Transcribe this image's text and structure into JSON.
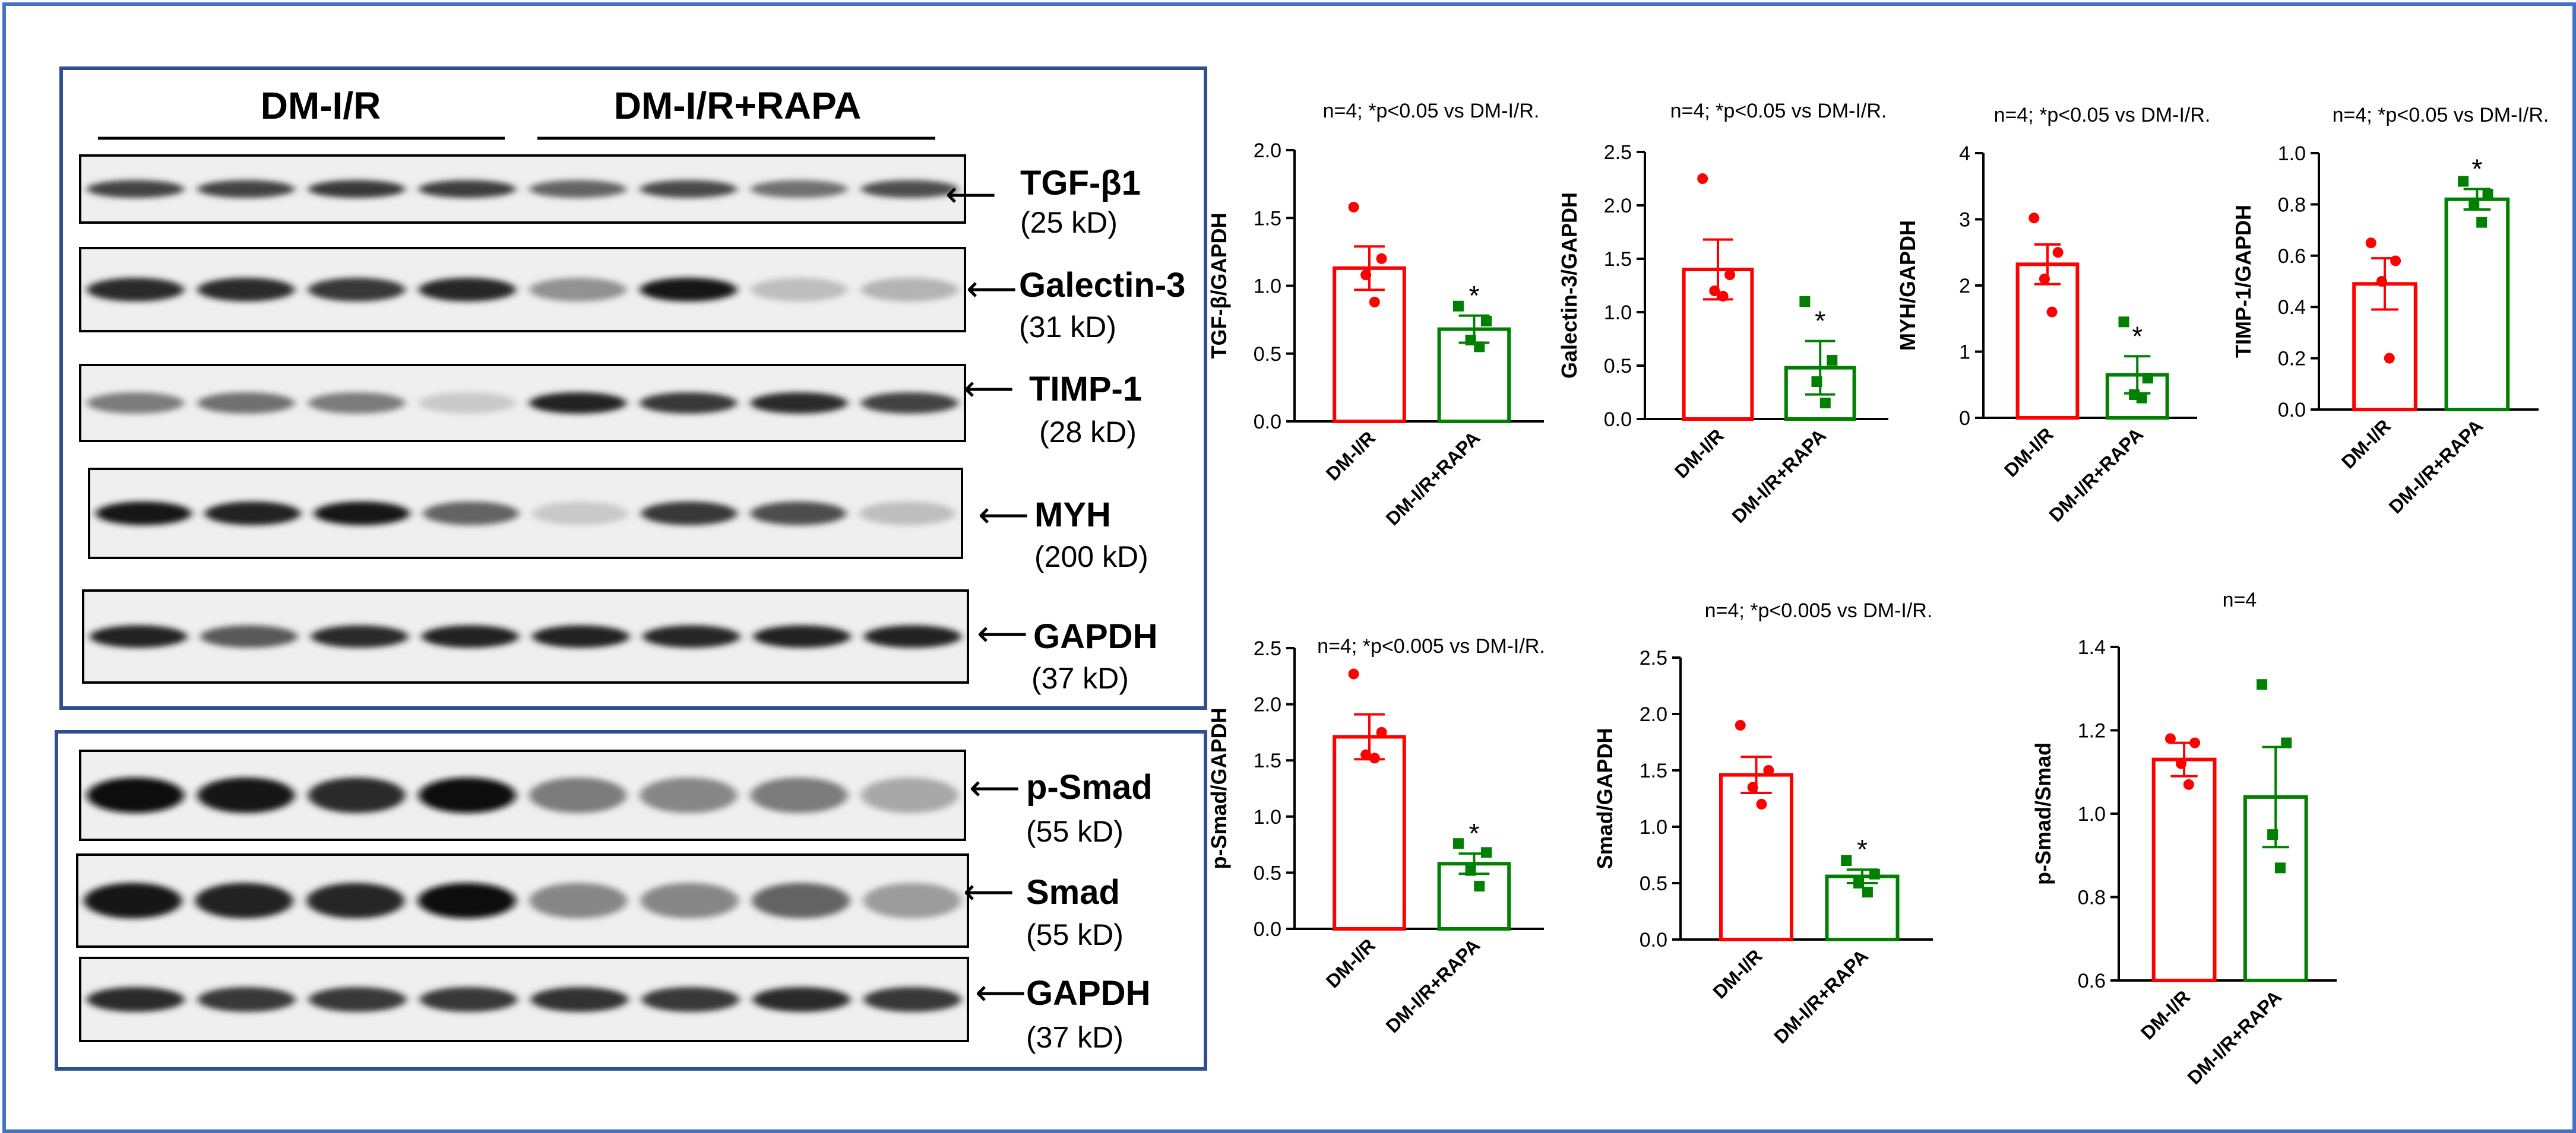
{
  "blot_panel": {
    "groups": [
      "DM-I/R",
      "DM-I/R+RAPA"
    ],
    "top_strips": [
      {
        "label": "TGF-β1",
        "size": "(25 kD)"
      },
      {
        "label": "Galectin-3",
        "size": "(31 kD)"
      },
      {
        "label": "TIMP-1",
        "size": "(28 kD)"
      },
      {
        "label": "MYH",
        "size": "(200 kD)"
      },
      {
        "label": "GAPDH",
        "size": "(37 kD)"
      }
    ],
    "bottom_strips": [
      {
        "label": "p-Smad",
        "size": "(55 kD)"
      },
      {
        "label": "Smad",
        "size": "(55 kD)"
      },
      {
        "label": "GAPDH",
        "size": "(37 kD)"
      }
    ],
    "band_intensity": {
      "tgf": [
        0.75,
        0.75,
        0.8,
        0.78,
        0.6,
        0.72,
        0.55,
        0.7
      ],
      "gal3": [
        0.85,
        0.85,
        0.8,
        0.88,
        0.4,
        0.95,
        0.2,
        0.25
      ],
      "timp1": [
        0.5,
        0.55,
        0.5,
        0.15,
        0.9,
        0.8,
        0.85,
        0.75
      ],
      "myh": [
        0.95,
        0.9,
        0.95,
        0.6,
        0.15,
        0.8,
        0.7,
        0.2
      ],
      "gapdh1": [
        0.9,
        0.65,
        0.85,
        0.9,
        0.9,
        0.88,
        0.9,
        0.9
      ],
      "psmad": [
        1.0,
        0.95,
        0.85,
        1.0,
        0.5,
        0.45,
        0.5,
        0.3
      ],
      "smad": [
        0.95,
        0.9,
        0.88,
        1.0,
        0.45,
        0.45,
        0.6,
        0.35
      ],
      "gapdh2": [
        0.85,
        0.8,
        0.8,
        0.8,
        0.82,
        0.8,
        0.85,
        0.8
      ]
    }
  },
  "colors": {
    "frame": "#4472c4",
    "group1": "#ff0000",
    "group2": "#008000",
    "axis": "#000000"
  },
  "chart_data": [
    {
      "type": "bar",
      "title": "n=4; *p<0.05 vs DM-I/R.",
      "ylabel": "TGF-β/GAPDH",
      "categories": [
        "DM-I/R",
        "DM-I/R+RAPA"
      ],
      "values": [
        1.13,
        0.68
      ],
      "sem": [
        0.16,
        0.1
      ],
      "points": [
        [
          1.58,
          1.2,
          1.08,
          0.88
        ],
        [
          0.85,
          0.74,
          0.6,
          0.55
        ]
      ],
      "ylim": [
        0,
        2
      ],
      "yticks": [
        "0.0",
        "0.5",
        "1.0",
        "1.5",
        "2.0"
      ],
      "significant": [
        false,
        true
      ]
    },
    {
      "type": "bar",
      "title": "n=4; *p<0.05 vs DM-I/R.",
      "ylabel": "Galectin-3/GAPDH",
      "categories": [
        "DM-I/R",
        "DM-I/R+RAPA"
      ],
      "values": [
        1.4,
        0.48
      ],
      "sem": [
        0.28,
        0.25
      ],
      "points": [
        [
          2.25,
          1.35,
          1.2,
          1.15
        ],
        [
          1.1,
          0.55,
          0.35,
          0.15
        ]
      ],
      "ylim": [
        0,
        2.5
      ],
      "yticks": [
        "0.0",
        "0.5",
        "1.0",
        "1.5",
        "2.0",
        "2.5"
      ],
      "significant": [
        false,
        true
      ]
    },
    {
      "type": "bar",
      "title": "n=4; *p<0.05 vs DM-I/R.",
      "ylabel": "MYH/GAPDH",
      "categories": [
        "DM-I/R",
        "DM-I/R+RAPA"
      ],
      "values": [
        2.32,
        0.65
      ],
      "sem": [
        0.3,
        0.28
      ],
      "points": [
        [
          3.02,
          2.5,
          2.1,
          1.6
        ],
        [
          1.45,
          0.6,
          0.35,
          0.3
        ]
      ],
      "ylim": [
        0,
        4
      ],
      "yticks": [
        "0",
        "1",
        "2",
        "3",
        "4"
      ],
      "significant": [
        false,
        true
      ]
    },
    {
      "type": "bar",
      "title": "n=4; *p<0.05 vs DM-I/R.",
      "ylabel": "TIMP-1/GAPDH",
      "categories": [
        "DM-I/R",
        "DM-I/R+RAPA"
      ],
      "values": [
        0.49,
        0.82
      ],
      "sem": [
        0.1,
        0.04
      ],
      "points": [
        [
          0.65,
          0.58,
          0.5,
          0.2
        ],
        [
          0.89,
          0.84,
          0.8,
          0.73
        ]
      ],
      "ylim": [
        0,
        1
      ],
      "yticks": [
        "0.0",
        "0.2",
        "0.4",
        "0.6",
        "0.8",
        "1.0"
      ],
      "significant": [
        false,
        true
      ]
    },
    {
      "type": "bar",
      "title": "n=4; *p<0.005 vs DM-I/R.",
      "ylabel": "p-Smad/GAPDH",
      "categories": [
        "DM-I/R",
        "DM-I/R+RAPA"
      ],
      "values": [
        1.71,
        0.58
      ],
      "sem": [
        0.2,
        0.09
      ],
      "points": [
        [
          2.27,
          1.75,
          1.55,
          1.52
        ],
        [
          0.76,
          0.68,
          0.52,
          0.38
        ]
      ],
      "ylim": [
        0,
        2.5
      ],
      "yticks": [
        "0.0",
        "0.5",
        "1.0",
        "1.5",
        "2.0",
        "2.5"
      ],
      "significant": [
        false,
        true
      ]
    },
    {
      "type": "bar",
      "title": "n=4; *p<0.005 vs DM-I/R.",
      "ylabel": "Smad/GAPDH",
      "categories": [
        "DM-I/R",
        "DM-I/R+RAPA"
      ],
      "values": [
        1.46,
        0.56
      ],
      "sem": [
        0.16,
        0.06
      ],
      "points": [
        [
          1.9,
          1.5,
          1.35,
          1.2
        ],
        [
          0.7,
          0.58,
          0.5,
          0.42
        ]
      ],
      "ylim": [
        0,
        2.5
      ],
      "yticks": [
        "0.0",
        "0.5",
        "1.0",
        "1.5",
        "2.0",
        "2.5"
      ],
      "significant": [
        false,
        true
      ]
    },
    {
      "type": "bar",
      "title": "n=4",
      "ylabel": "p-Smad/Smad",
      "categories": [
        "DM-I/R",
        "DM-I/R+RAPA"
      ],
      "values": [
        1.13,
        1.04
      ],
      "sem": [
        0.04,
        0.12
      ],
      "points": [
        [
          1.18,
          1.17,
          1.12,
          1.07
        ],
        [
          1.31,
          1.17,
          0.95,
          0.87
        ]
      ],
      "ylim": [
        0.6,
        1.4
      ],
      "yticks": [
        "0.6",
        "0.8",
        "1.0",
        "1.2",
        "1.4"
      ],
      "significant": [
        false,
        false
      ]
    }
  ]
}
